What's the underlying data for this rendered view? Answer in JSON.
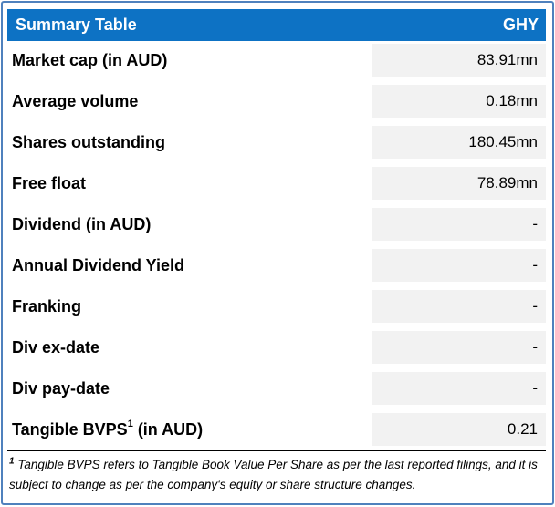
{
  "header": {
    "title": "Summary Table",
    "ticker": "GHY"
  },
  "rows": [
    {
      "label": "Market cap (in AUD)",
      "value": "83.91mn"
    },
    {
      "label": "Average volume",
      "value": "0.18mn"
    },
    {
      "label": "Shares outstanding",
      "value": "180.45mn"
    },
    {
      "label": "Free float",
      "value": "78.89mn"
    },
    {
      "label": "Dividend (in AUD)",
      "value": "-"
    },
    {
      "label": "Annual Dividend Yield",
      "value": "-"
    },
    {
      "label": "Franking",
      "value": "-"
    },
    {
      "label": "Div ex-date",
      "value": "-"
    },
    {
      "label": "Div pay-date",
      "value": "-"
    },
    {
      "label": "Tangible BVPS",
      "sup": "1",
      "label_after": " (in AUD)",
      "value": "0.21"
    }
  ],
  "footnote": {
    "marker": "1",
    "text": "Tangible BVPS refers to Tangible Book Value Per Share as per the last reported filings, and it is subject to change as per the company's equity or share structure changes."
  },
  "colors": {
    "header_bg": "#0d72c4",
    "outer_border": "#4f81bd",
    "value_cell_bg": "#f2f2f2",
    "header_text": "#ffffff",
    "body_text": "#000000"
  }
}
